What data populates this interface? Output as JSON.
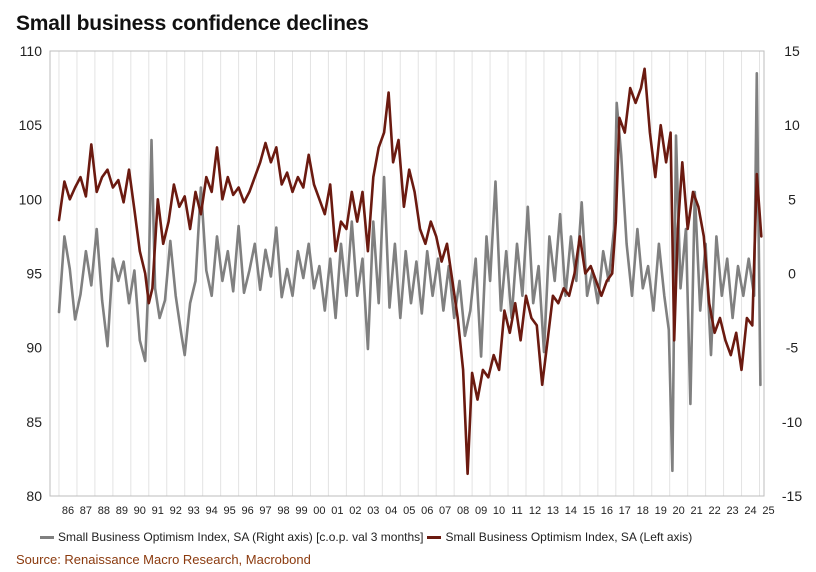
{
  "title": "Small business confidence declines",
  "source": "Source: Renaissance Macro Research, Macrobond",
  "colors": {
    "optimism_yoy": "#808080",
    "optimism_level": "#6b1a10"
  },
  "chart_data": {
    "type": "line",
    "title": "Small business confidence declines",
    "x_range": [
      1985.5,
      2025.25
    ],
    "x_tick_labels": [
      "86",
      "87",
      "88",
      "89",
      "90",
      "91",
      "92",
      "93",
      "94",
      "95",
      "96",
      "97",
      "98",
      "99",
      "00",
      "01",
      "02",
      "03",
      "04",
      "05",
      "06",
      "07",
      "08",
      "09",
      "10",
      "11",
      "12",
      "13",
      "14",
      "15",
      "16",
      "17",
      "18",
      "19",
      "20",
      "21",
      "22",
      "23",
      "24",
      "25"
    ],
    "left_axis": {
      "ylim": [
        80,
        110
      ],
      "ticks": [
        "80",
        "85",
        "90",
        "95",
        "100",
        "105",
        "110"
      ]
    },
    "right_axis": {
      "ylim": [
        -15,
        15
      ],
      "ticks": [
        "-15",
        "-10",
        "-5",
        "0",
        "5",
        "10",
        "15"
      ]
    },
    "grid": "vertical",
    "legend_position": "bottom",
    "series": [
      {
        "name": "Small Business Optimism Index, SA (Right axis) [c.o.p. val 3 months]",
        "axis": "right",
        "color": "#808080",
        "points": [
          [
            1986.0,
            -2.6
          ],
          [
            1986.3,
            2.5
          ],
          [
            1986.6,
            0.3
          ],
          [
            1986.9,
            -3.1
          ],
          [
            1987.2,
            -1.4
          ],
          [
            1987.5,
            1.5
          ],
          [
            1987.8,
            -0.8
          ],
          [
            1988.1,
            3.0
          ],
          [
            1988.4,
            -1.8
          ],
          [
            1988.7,
            -4.9
          ],
          [
            1989.0,
            1.0
          ],
          [
            1989.3,
            -0.5
          ],
          [
            1989.6,
            0.8
          ],
          [
            1989.9,
            -2.0
          ],
          [
            1990.2,
            0.2
          ],
          [
            1990.5,
            -4.5
          ],
          [
            1990.8,
            -5.9
          ],
          [
            1991.0,
            0.0
          ],
          [
            1991.15,
            9.0
          ],
          [
            1991.35,
            -1.0
          ],
          [
            1991.6,
            -3.0
          ],
          [
            1991.9,
            -1.8
          ],
          [
            1992.2,
            2.2
          ],
          [
            1992.5,
            -1.5
          ],
          [
            1992.8,
            -4.0
          ],
          [
            1993.0,
            -5.5
          ],
          [
            1993.3,
            -2.0
          ],
          [
            1993.6,
            -0.5
          ],
          [
            1993.9,
            5.8
          ],
          [
            1994.2,
            0.2
          ],
          [
            1994.5,
            -1.5
          ],
          [
            1994.8,
            2.5
          ],
          [
            1995.1,
            -0.5
          ],
          [
            1995.4,
            1.5
          ],
          [
            1995.7,
            -1.2
          ],
          [
            1996.0,
            3.2
          ],
          [
            1996.3,
            -1.3
          ],
          [
            1996.6,
            0.2
          ],
          [
            1996.9,
            2.0
          ],
          [
            1997.2,
            -1.1
          ],
          [
            1997.5,
            1.6
          ],
          [
            1997.8,
            -0.2
          ],
          [
            1998.1,
            3.1
          ],
          [
            1998.4,
            -1.6
          ],
          [
            1998.7,
            0.3
          ],
          [
            1999.0,
            -1.5
          ],
          [
            1999.3,
            1.5
          ],
          [
            1999.6,
            -0.3
          ],
          [
            1999.9,
            2.0
          ],
          [
            2000.2,
            -1.0
          ],
          [
            2000.5,
            0.5
          ],
          [
            2000.8,
            -2.5
          ],
          [
            2001.1,
            1.0
          ],
          [
            2001.4,
            -3.0
          ],
          [
            2001.7,
            2.0
          ],
          [
            2002.0,
            -1.5
          ],
          [
            2002.3,
            3.5
          ],
          [
            2002.6,
            -1.5
          ],
          [
            2002.9,
            1.0
          ],
          [
            2003.2,
            -5.1
          ],
          [
            2003.5,
            3.5
          ],
          [
            2003.8,
            -2.0
          ],
          [
            2004.1,
            6.5
          ],
          [
            2004.4,
            -2.3
          ],
          [
            2004.7,
            2.0
          ],
          [
            2005.0,
            -3.0
          ],
          [
            2005.3,
            1.5
          ],
          [
            2005.6,
            -2.0
          ],
          [
            2005.9,
            0.8
          ],
          [
            2006.2,
            -2.7
          ],
          [
            2006.5,
            1.5
          ],
          [
            2006.8,
            -1.5
          ],
          [
            2007.1,
            1.0
          ],
          [
            2007.4,
            -2.5
          ],
          [
            2007.7,
            0.5
          ],
          [
            2008.0,
            -3.0
          ],
          [
            2008.3,
            -0.5
          ],
          [
            2008.6,
            -4.2
          ],
          [
            2008.9,
            -2.5
          ],
          [
            2009.2,
            1.0
          ],
          [
            2009.5,
            -5.6
          ],
          [
            2009.8,
            2.5
          ],
          [
            2010.0,
            -0.5
          ],
          [
            2010.3,
            6.2
          ],
          [
            2010.6,
            -2.5
          ],
          [
            2010.9,
            1.5
          ],
          [
            2011.2,
            -3.0
          ],
          [
            2011.5,
            2.0
          ],
          [
            2011.8,
            -1.5
          ],
          [
            2012.1,
            4.5
          ],
          [
            2012.4,
            -2.0
          ],
          [
            2012.7,
            0.5
          ],
          [
            2013.0,
            -5.3
          ],
          [
            2013.3,
            2.5
          ],
          [
            2013.6,
            -0.5
          ],
          [
            2013.9,
            4.0
          ],
          [
            2014.2,
            -1.5
          ],
          [
            2014.5,
            2.5
          ],
          [
            2014.8,
            -0.5
          ],
          [
            2015.1,
            4.8
          ],
          [
            2015.4,
            -1.5
          ],
          [
            2015.7,
            0.2
          ],
          [
            2016.0,
            -2.0
          ],
          [
            2016.3,
            1.5
          ],
          [
            2016.6,
            -0.5
          ],
          [
            2016.9,
            3.0
          ],
          [
            2017.05,
            11.5
          ],
          [
            2017.3,
            8.0
          ],
          [
            2017.6,
            2.0
          ],
          [
            2017.9,
            -1.5
          ],
          [
            2018.2,
            3.0
          ],
          [
            2018.5,
            -1.0
          ],
          [
            2018.8,
            0.5
          ],
          [
            2019.1,
            -2.5
          ],
          [
            2019.4,
            2.0
          ],
          [
            2019.7,
            -1.5
          ],
          [
            2019.95,
            -3.8
          ],
          [
            2020.15,
            -13.3
          ],
          [
            2020.35,
            9.3
          ],
          [
            2020.6,
            -1.0
          ],
          [
            2020.9,
            3.0
          ],
          [
            2021.15,
            -8.8
          ],
          [
            2021.4,
            5.5
          ],
          [
            2021.7,
            -2.5
          ],
          [
            2022.0,
            2.0
          ],
          [
            2022.3,
            -5.5
          ],
          [
            2022.6,
            2.5
          ],
          [
            2022.9,
            -1.5
          ],
          [
            2023.2,
            1.0
          ],
          [
            2023.5,
            -3.0
          ],
          [
            2023.8,
            0.5
          ],
          [
            2024.1,
            -1.5
          ],
          [
            2024.4,
            1.0
          ],
          [
            2024.7,
            -1.5
          ],
          [
            2024.85,
            13.5
          ],
          [
            2025.05,
            -7.5
          ]
        ]
      },
      {
        "name": "Small Business Optimism Index, SA (Left axis)",
        "axis": "left",
        "color": "#6b1a10",
        "points": [
          [
            1986.0,
            98.6
          ],
          [
            1986.3,
            101.2
          ],
          [
            1986.6,
            100.0
          ],
          [
            1986.9,
            100.8
          ],
          [
            1987.2,
            101.5
          ],
          [
            1987.5,
            100.2
          ],
          [
            1987.8,
            103.7
          ],
          [
            1988.1,
            100.5
          ],
          [
            1988.4,
            101.5
          ],
          [
            1988.7,
            102.0
          ],
          [
            1989.0,
            100.8
          ],
          [
            1989.3,
            101.3
          ],
          [
            1989.6,
            99.8
          ],
          [
            1989.9,
            102.0
          ],
          [
            1990.2,
            99.3
          ],
          [
            1990.5,
            96.5
          ],
          [
            1990.8,
            95.0
          ],
          [
            1991.0,
            93.0
          ],
          [
            1991.2,
            94.0
          ],
          [
            1991.5,
            100.0
          ],
          [
            1991.8,
            97.0
          ],
          [
            1992.1,
            98.5
          ],
          [
            1992.4,
            101.0
          ],
          [
            1992.7,
            99.5
          ],
          [
            1993.0,
            100.2
          ],
          [
            1993.3,
            98.0
          ],
          [
            1993.6,
            100.5
          ],
          [
            1993.9,
            99.0
          ],
          [
            1994.2,
            101.5
          ],
          [
            1994.5,
            100.5
          ],
          [
            1994.8,
            103.5
          ],
          [
            1995.1,
            100.0
          ],
          [
            1995.4,
            101.5
          ],
          [
            1995.7,
            100.3
          ],
          [
            1996.0,
            100.8
          ],
          [
            1996.3,
            99.8
          ],
          [
            1996.6,
            100.5
          ],
          [
            1996.9,
            101.5
          ],
          [
            1997.2,
            102.5
          ],
          [
            1997.5,
            103.8
          ],
          [
            1997.8,
            102.5
          ],
          [
            1998.1,
            103.5
          ],
          [
            1998.4,
            101.0
          ],
          [
            1998.7,
            101.8
          ],
          [
            1999.0,
            100.5
          ],
          [
            1999.3,
            101.5
          ],
          [
            1999.6,
            100.8
          ],
          [
            1999.9,
            103.0
          ],
          [
            2000.2,
            101.0
          ],
          [
            2000.5,
            100.0
          ],
          [
            2000.8,
            99.0
          ],
          [
            2001.1,
            101.0
          ],
          [
            2001.4,
            96.5
          ],
          [
            2001.7,
            98.5
          ],
          [
            2002.0,
            98.0
          ],
          [
            2002.3,
            100.5
          ],
          [
            2002.6,
            98.5
          ],
          [
            2002.9,
            100.5
          ],
          [
            2003.2,
            96.5
          ],
          [
            2003.5,
            101.5
          ],
          [
            2003.8,
            103.5
          ],
          [
            2004.1,
            104.5
          ],
          [
            2004.35,
            107.2
          ],
          [
            2004.6,
            102.5
          ],
          [
            2004.9,
            104.0
          ],
          [
            2005.2,
            99.5
          ],
          [
            2005.5,
            102.0
          ],
          [
            2005.8,
            100.5
          ],
          [
            2006.1,
            98.0
          ],
          [
            2006.4,
            97.0
          ],
          [
            2006.7,
            98.5
          ],
          [
            2007.0,
            97.5
          ],
          [
            2007.3,
            95.8
          ],
          [
            2007.6,
            97.0
          ],
          [
            2007.9,
            94.5
          ],
          [
            2008.2,
            92.0
          ],
          [
            2008.5,
            88.5
          ],
          [
            2008.75,
            81.5
          ],
          [
            2009.0,
            88.3
          ],
          [
            2009.3,
            86.5
          ],
          [
            2009.6,
            88.5
          ],
          [
            2009.9,
            88.0
          ],
          [
            2010.2,
            89.5
          ],
          [
            2010.5,
            88.5
          ],
          [
            2010.8,
            92.5
          ],
          [
            2011.1,
            91.0
          ],
          [
            2011.4,
            93.0
          ],
          [
            2011.7,
            90.5
          ],
          [
            2012.0,
            93.5
          ],
          [
            2012.3,
            92.0
          ],
          [
            2012.6,
            91.5
          ],
          [
            2012.9,
            87.5
          ],
          [
            2013.2,
            90.5
          ],
          [
            2013.5,
            93.5
          ],
          [
            2013.8,
            93.0
          ],
          [
            2014.1,
            94.0
          ],
          [
            2014.4,
            93.5
          ],
          [
            2014.7,
            95.0
          ],
          [
            2015.0,
            97.5
          ],
          [
            2015.3,
            95.0
          ],
          [
            2015.6,
            95.5
          ],
          [
            2015.9,
            94.5
          ],
          [
            2016.2,
            93.5
          ],
          [
            2016.5,
            94.5
          ],
          [
            2016.8,
            95.0
          ],
          [
            2017.0,
            98.5
          ],
          [
            2017.2,
            105.5
          ],
          [
            2017.5,
            104.5
          ],
          [
            2017.8,
            107.5
          ],
          [
            2018.1,
            106.5
          ],
          [
            2018.4,
            107.5
          ],
          [
            2018.6,
            108.8
          ],
          [
            2018.9,
            104.5
          ],
          [
            2019.2,
            101.5
          ],
          [
            2019.5,
            105.0
          ],
          [
            2019.8,
            102.5
          ],
          [
            2020.05,
            104.5
          ],
          [
            2020.25,
            90.5
          ],
          [
            2020.45,
            98.0
          ],
          [
            2020.7,
            102.5
          ],
          [
            2021.0,
            98.0
          ],
          [
            2021.3,
            100.5
          ],
          [
            2021.6,
            99.5
          ],
          [
            2021.9,
            97.5
          ],
          [
            2022.2,
            93.0
          ],
          [
            2022.5,
            91.0
          ],
          [
            2022.8,
            92.0
          ],
          [
            2023.1,
            90.5
          ],
          [
            2023.4,
            89.5
          ],
          [
            2023.7,
            91.0
          ],
          [
            2024.0,
            88.5
          ],
          [
            2024.3,
            92.0
          ],
          [
            2024.6,
            91.5
          ],
          [
            2024.85,
            101.7
          ],
          [
            2025.1,
            97.5
          ]
        ]
      }
    ]
  }
}
